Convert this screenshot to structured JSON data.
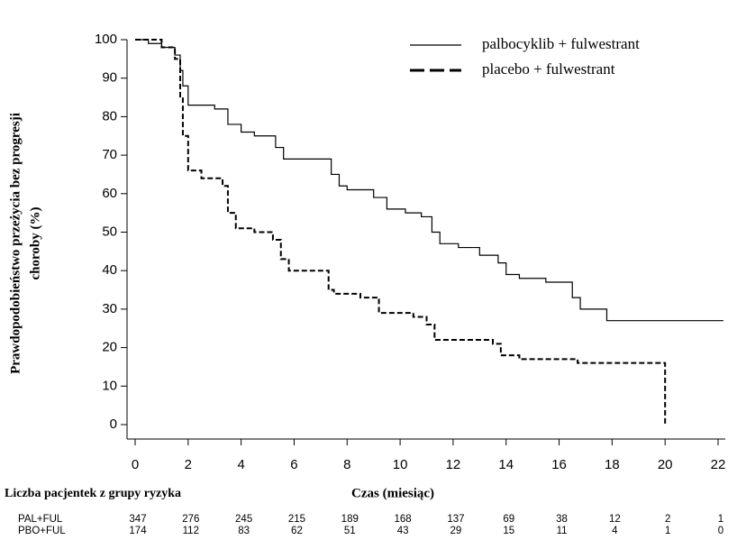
{
  "chart_data": {
    "type": "step",
    "ylabel": [
      "Prawdopodobieństwo przeżycia bez progresji",
      "choroby (%)"
    ],
    "xlabel": "Czas (miesiąc)",
    "xlim": [
      0,
      22
    ],
    "xticks": [
      0,
      2,
      4,
      6,
      8,
      10,
      12,
      14,
      16,
      18,
      20,
      22
    ],
    "ylim": [
      0,
      100
    ],
    "yticks": [
      0,
      10,
      20,
      30,
      40,
      50,
      60,
      70,
      80,
      90,
      100
    ],
    "series": [
      {
        "name": "palbocyklib + fulwestrant",
        "color": "#000000",
        "dash": false,
        "x": [
          0,
          0.5,
          1,
          1.5,
          1.7,
          1.8,
          2,
          3,
          3.5,
          4,
          4.5,
          5.3,
          5.6,
          7.4,
          7.7,
          8,
          9,
          9.5,
          10.2,
          10.8,
          11.2,
          11.5,
          12.2,
          13,
          13.7,
          14,
          14.5,
          15.5,
          16.5,
          16.8,
          17.8,
          22.2
        ],
        "values": [
          100,
          99,
          98,
          96,
          92,
          88,
          83,
          82,
          78,
          76,
          75,
          72,
          69,
          65,
          62,
          61,
          59,
          56,
          55,
          54,
          50,
          47,
          46,
          44,
          42,
          39,
          38,
          37,
          33,
          30,
          27,
          27
        ]
      },
      {
        "name": "placebo + fulwestrant",
        "color": "#000000",
        "dash": true,
        "x": [
          0,
          1,
          1.5,
          1.7,
          1.8,
          2,
          2.5,
          3.3,
          3.5,
          3.8,
          4.5,
          5.2,
          5.5,
          5.8,
          7.3,
          7.5,
          8.5,
          9.2,
          10.5,
          11,
          11.3,
          13.5,
          13.8,
          14.5,
          16.7,
          20,
          20
        ],
        "values": [
          100,
          98,
          95,
          85,
          75,
          66,
          64,
          62,
          55,
          51,
          50,
          48,
          43,
          40,
          35,
          34,
          33,
          29,
          28,
          26,
          22,
          21,
          18,
          17,
          16,
          16,
          0
        ]
      }
    ],
    "risk_table": {
      "title": "Liczba pacjentek z grupy ryzyka",
      "rows": [
        {
          "label": "PAL+FUL",
          "values": [
            347,
            276,
            245,
            215,
            189,
            168,
            137,
            69,
            38,
            12,
            2,
            1
          ]
        },
        {
          "label": "PBO+FUL",
          "values": [
            174,
            112,
            83,
            62,
            51,
            43,
            29,
            15,
            11,
            4,
            1,
            0
          ]
        }
      ]
    }
  }
}
